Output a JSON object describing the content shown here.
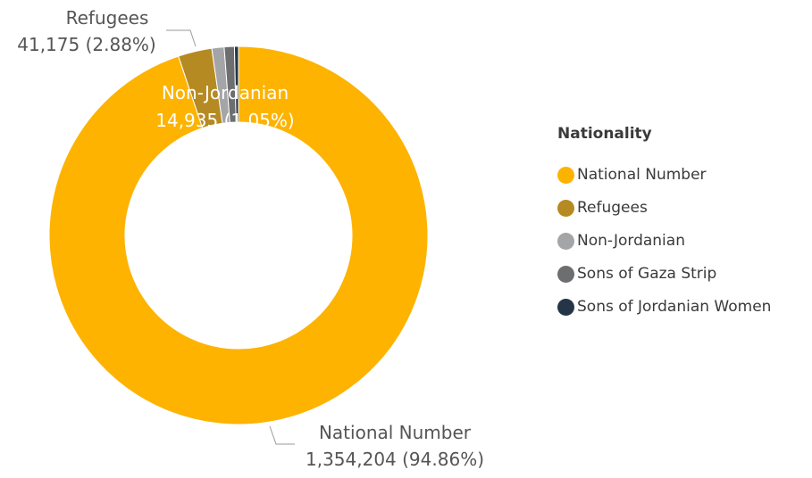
{
  "chart_data": {
    "type": "pie",
    "subtype": "donut",
    "categories": [
      "National Number",
      "Refugees",
      "Non-Jordanian",
      "Sons of Gaza Strip",
      "Sons of Jordanian Women"
    ],
    "values": [
      1354204,
      41175,
      14935,
      12400,
      4880
    ],
    "percent_labels": [
      "94.86%",
      "2.88%",
      "1.05%",
      "",
      ""
    ],
    "value_labels": [
      "1,354,204",
      "41,175",
      "14,935",
      "",
      ""
    ],
    "colors": [
      "#FDB300",
      "#B68A22",
      "#A4A5A6",
      "#6D6E70",
      "#243548"
    ],
    "legend": {
      "title": "Nationality",
      "position": "right"
    }
  },
  "data_labels": [
    {
      "category": "Refugees",
      "value": "41,175 (2.88%)"
    },
    {
      "category": "Non-Jordanian",
      "value": "14,935 (1.05%)"
    },
    {
      "category": "National Number",
      "value": "1,354,204 (94.86%)"
    }
  ]
}
